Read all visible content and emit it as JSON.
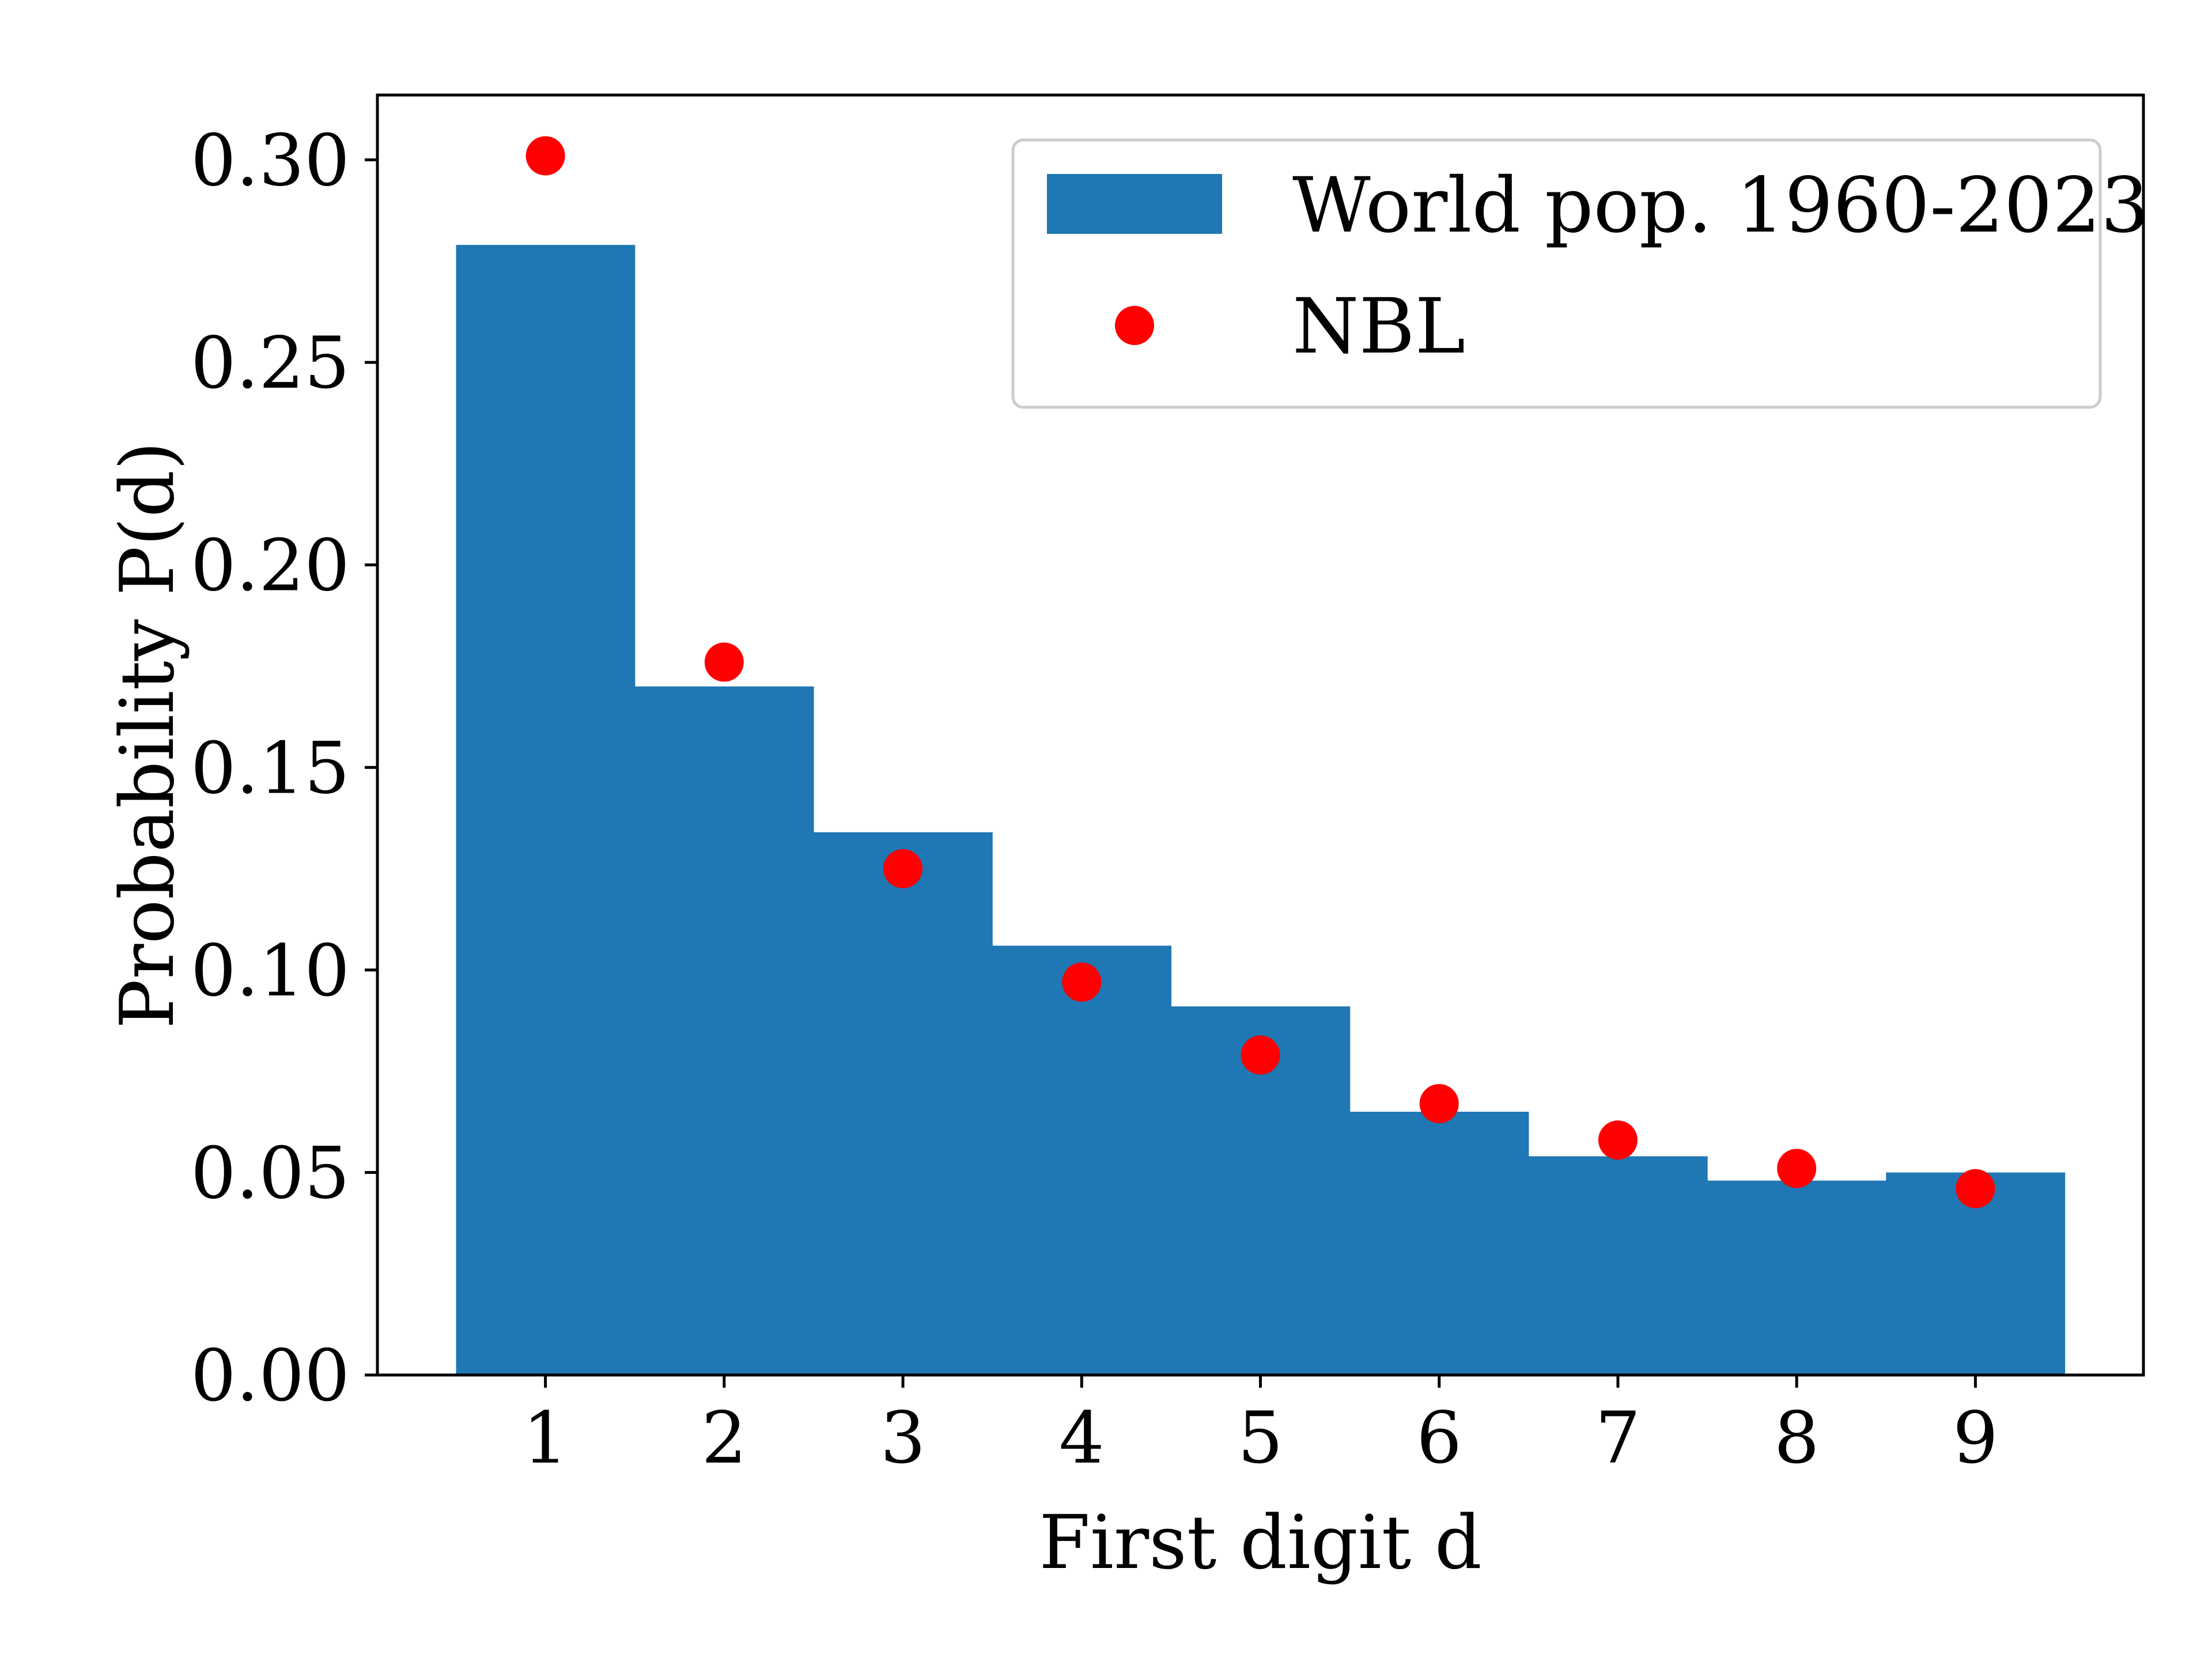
{
  "chart_data": {
    "type": "bar",
    "categories": [
      "1",
      "2",
      "3",
      "4",
      "5",
      "6",
      "7",
      "8",
      "9"
    ],
    "series": [
      {
        "name": "World pop. 1960-2023",
        "type": "bar",
        "color": "#1f77b4",
        "values": [
          0.279,
          0.17,
          0.134,
          0.106,
          0.091,
          0.065,
          0.054,
          0.048,
          0.05
        ]
      },
      {
        "name": "NBL",
        "type": "scatter",
        "color": "#ff0000",
        "values": [
          0.301,
          0.176,
          0.125,
          0.097,
          0.079,
          0.067,
          0.058,
          0.051,
          0.046
        ]
      }
    ],
    "xlabel": "First digit d",
    "ylabel": "Probability P(d)",
    "ylim": [
      0.0,
      0.316
    ],
    "xlim": [
      0.06,
      9.94
    ],
    "yticks": [
      "0.00",
      "0.05",
      "0.10",
      "0.15",
      "0.20",
      "0.25",
      "0.30"
    ],
    "grid": false,
    "legend_position": "top-right"
  }
}
